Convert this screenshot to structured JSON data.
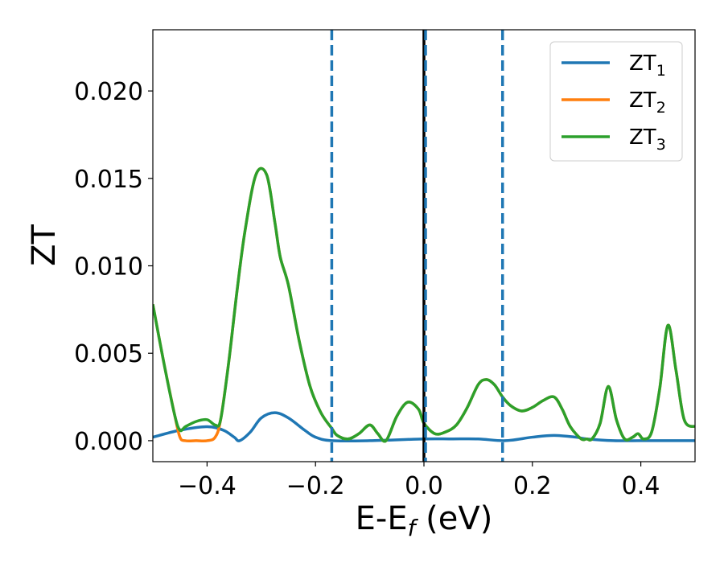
{
  "chart_data": {
    "type": "line",
    "xlabel_main": "E-E",
    "xlabel_sub": "f",
    "xlabel_unit": " (eV)",
    "ylabel": "ZT",
    "xlim": [
      -0.5,
      0.5
    ],
    "ylim": [
      -0.0012,
      0.0235
    ],
    "xticks": [
      -0.4,
      -0.2,
      0.0,
      0.2,
      0.4
    ],
    "xtick_labels": [
      "−0.4",
      "−0.2",
      "0.0",
      "0.2",
      "0.4"
    ],
    "yticks": [
      0.0,
      0.005,
      0.01,
      0.015,
      0.02
    ],
    "ytick_labels": [
      "0.000",
      "0.005",
      "0.010",
      "0.015",
      "0.020"
    ],
    "vlines": [
      {
        "x": -0.17,
        "style": "dashed",
        "color": "#1f77b4"
      },
      {
        "x": 0.0,
        "style": "solid",
        "color": "#000000"
      },
      {
        "x": 0.003,
        "style": "dashed",
        "color": "#1f77b4"
      },
      {
        "x": 0.145,
        "style": "dashed",
        "color": "#1f77b4"
      }
    ],
    "legend_position": "top-right",
    "series": [
      {
        "name": "ZT",
        "name_sub": "1",
        "color": "#1f77b4",
        "x": [
          -0.5,
          -0.45,
          -0.4,
          -0.37,
          -0.35,
          -0.34,
          -0.32,
          -0.3,
          -0.275,
          -0.25,
          -0.22,
          -0.2,
          -0.17,
          -0.1,
          0.0,
          0.05,
          0.1,
          0.15,
          0.2,
          0.24,
          0.28,
          0.3,
          0.35,
          0.4,
          0.45,
          0.5
        ],
        "y": [
          0.0002,
          0.0006,
          0.0008,
          0.0006,
          0.0002,
          0.0,
          0.0005,
          0.0013,
          0.0016,
          0.0013,
          0.0006,
          0.0002,
          0.0,
          0.0,
          0.0001,
          0.0001,
          0.0001,
          0.0,
          0.0002,
          0.0003,
          0.0002,
          0.0001,
          0.0,
          0.0,
          0.0,
          0.0
        ]
      },
      {
        "name": "ZT",
        "name_sub": "2",
        "color": "#ff7f0e",
        "x": [
          -0.5,
          -0.48,
          -0.46,
          -0.45,
          -0.44,
          -0.42,
          -0.4,
          -0.385,
          -0.375,
          -0.36,
          -0.345,
          -0.33,
          -0.31,
          -0.29,
          -0.275,
          -0.265,
          -0.25,
          -0.23,
          -0.21,
          -0.19,
          -0.17,
          -0.16,
          -0.14,
          -0.12,
          -0.1,
          -0.085,
          -0.07,
          -0.05,
          -0.03,
          -0.01,
          0.0,
          0.02,
          0.04,
          0.06,
          0.08,
          0.1,
          0.115,
          0.13,
          0.145,
          0.16,
          0.18,
          0.2,
          0.22,
          0.24,
          0.255,
          0.27,
          0.29,
          0.3,
          0.31,
          0.325,
          0.34,
          0.355,
          0.37,
          0.385,
          0.395,
          0.405,
          0.42,
          0.435,
          0.45,
          0.465,
          0.48,
          0.5
        ],
        "y": [
          0.0078,
          0.0045,
          0.0015,
          0.0002,
          0.0,
          0.0,
          0.0,
          0.0002,
          0.0012,
          0.0045,
          0.0085,
          0.012,
          0.0152,
          0.0152,
          0.0125,
          0.0105,
          0.0089,
          0.0057,
          0.0031,
          0.0016,
          0.0007,
          0.0003,
          0.0001,
          0.0004,
          0.0009,
          0.0004,
          0.0,
          0.0014,
          0.0022,
          0.0018,
          0.001,
          0.0004,
          0.0005,
          0.0009,
          0.0019,
          0.0032,
          0.0035,
          0.0032,
          0.0025,
          0.002,
          0.0017,
          0.0019,
          0.0023,
          0.0025,
          0.0018,
          0.0008,
          0.0001,
          0.0001,
          0.0001,
          0.001,
          0.0031,
          0.0012,
          0.0001,
          0.0002,
          0.0004,
          0.0001,
          0.0005,
          0.003,
          0.0066,
          0.004,
          0.0012,
          0.0008
        ]
      },
      {
        "name": "ZT",
        "name_sub": "3",
        "color": "#2ca02c",
        "x": [
          -0.5,
          -0.48,
          -0.46,
          -0.45,
          -0.44,
          -0.42,
          -0.4,
          -0.385,
          -0.375,
          -0.36,
          -0.345,
          -0.33,
          -0.31,
          -0.29,
          -0.275,
          -0.265,
          -0.25,
          -0.23,
          -0.21,
          -0.19,
          -0.17,
          -0.16,
          -0.14,
          -0.12,
          -0.1,
          -0.085,
          -0.07,
          -0.05,
          -0.03,
          -0.01,
          0.0,
          0.02,
          0.04,
          0.06,
          0.08,
          0.1,
          0.115,
          0.13,
          0.145,
          0.16,
          0.18,
          0.2,
          0.22,
          0.24,
          0.255,
          0.27,
          0.29,
          0.3,
          0.31,
          0.325,
          0.34,
          0.355,
          0.37,
          0.385,
          0.395,
          0.405,
          0.42,
          0.435,
          0.45,
          0.465,
          0.48,
          0.5
        ],
        "y": [
          0.0078,
          0.0045,
          0.0015,
          0.0006,
          0.0008,
          0.0011,
          0.0012,
          0.0009,
          0.0012,
          0.0045,
          0.0085,
          0.012,
          0.0152,
          0.0152,
          0.0125,
          0.0105,
          0.0089,
          0.0057,
          0.0031,
          0.0016,
          0.0007,
          0.0003,
          0.0001,
          0.0004,
          0.0009,
          0.0004,
          0.0,
          0.0014,
          0.0022,
          0.0018,
          0.001,
          0.0004,
          0.0005,
          0.0009,
          0.0019,
          0.0032,
          0.0035,
          0.0032,
          0.0025,
          0.002,
          0.0017,
          0.0019,
          0.0023,
          0.0025,
          0.0018,
          0.0008,
          0.0001,
          0.0001,
          0.0001,
          0.001,
          0.0031,
          0.0012,
          0.0001,
          0.0002,
          0.0004,
          0.0001,
          0.0005,
          0.003,
          0.0066,
          0.004,
          0.0012,
          0.0008
        ]
      }
    ]
  }
}
